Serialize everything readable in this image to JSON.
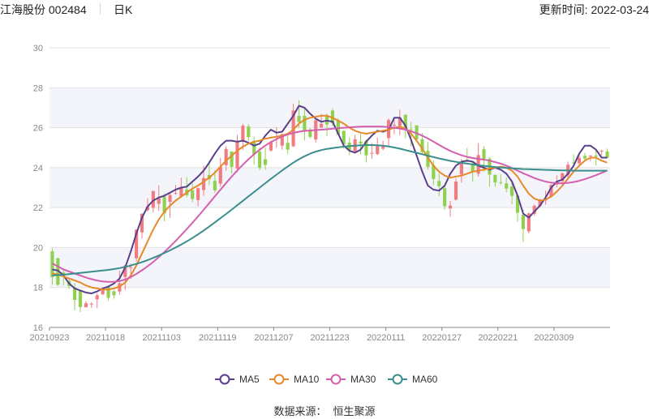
{
  "header": {
    "stock": "江海股份 002484",
    "period": "日K",
    "updated_label": "更新时间: ",
    "updated_date": "2022-03-24"
  },
  "footer": {
    "source_label": "数据来源：",
    "source_value": "恒生聚源"
  },
  "colors": {
    "up": "#f07c82",
    "down": "#8fd14f",
    "MA5": "#5a3f8c",
    "MA10": "#e8892a",
    "MA30": "#d45fae",
    "MA60": "#3a8f8c",
    "band": "#f4f5fa",
    "grid": "#e2e2e2"
  },
  "chart_data": {
    "type": "candlestick",
    "y_ticks": [
      "16",
      "18",
      "20",
      "22",
      "24",
      "26",
      "28",
      "30"
    ],
    "ylim": [
      16,
      30
    ],
    "x_labels": [
      "20210923",
      "20211018",
      "20211103",
      "20211119",
      "20211207",
      "20211223",
      "20220111",
      "20220127",
      "20220221",
      "20220309"
    ],
    "x_label_index": [
      0,
      10,
      20,
      30,
      40,
      50,
      60,
      70,
      80,
      90
    ],
    "candle_count": 100,
    "candles": [
      [
        19.81,
        18.52,
        19.96,
        18.15
      ],
      [
        19.46,
        18.14,
        19.5,
        18.08
      ],
      [
        18.75,
        18.57,
        18.95,
        18.1
      ],
      [
        18.33,
        18.07,
        18.45,
        17.93
      ],
      [
        17.99,
        17.38,
        18.21,
        16.86
      ],
      [
        17.85,
        17.02,
        17.89,
        16.77
      ],
      [
        17.01,
        17.21,
        17.32,
        17.0
      ],
      [
        17.16,
        17.19,
        17.26,
        16.99
      ],
      [
        17.41,
        17.61,
        17.71,
        16.97
      ],
      [
        17.66,
        17.9,
        17.96,
        17.62
      ],
      [
        18.03,
        17.48,
        18.09,
        17.35
      ],
      [
        17.81,
        17.61,
        17.89,
        17.44
      ],
      [
        17.8,
        18.21,
        18.84,
        17.64
      ],
      [
        18.53,
        19.1,
        19.14,
        17.88
      ],
      [
        19.0,
        19.02,
        19.2,
        18.43
      ],
      [
        19.46,
        20.89,
        20.91,
        19.31
      ],
      [
        20.76,
        21.69,
        21.72,
        20.45
      ],
      [
        21.87,
        22.05,
        22.47,
        21.8
      ],
      [
        21.99,
        22.83,
        22.84,
        21.76
      ],
      [
        22.19,
        22.46,
        23.12,
        21.84
      ],
      [
        22.55,
        21.71,
        22.7,
        21.32
      ],
      [
        22.29,
        22.63,
        22.76,
        21.48
      ],
      [
        22.71,
        22.73,
        23.13,
        22.64
      ],
      [
        22.58,
        23.0,
        23.5,
        22.49
      ],
      [
        22.91,
        22.62,
        23.53,
        22.53
      ],
      [
        22.86,
        22.43,
        23.21,
        22.26
      ],
      [
        22.38,
        22.97,
        23.0,
        22.06
      ],
      [
        22.88,
        23.48,
        24.09,
        22.59
      ],
      [
        23.63,
        23.43,
        24.35,
        23.12
      ],
      [
        23.34,
        22.86,
        23.86,
        22.75
      ],
      [
        23.2,
        24.04,
        24.49,
        23.05
      ],
      [
        24.12,
        24.94,
        25.07,
        23.84
      ],
      [
        24.81,
        24.04,
        24.81,
        23.71
      ],
      [
        23.96,
        25.34,
        25.64,
        23.77
      ],
      [
        25.33,
        26.1,
        26.2,
        24.88
      ],
      [
        26.06,
        25.53,
        26.17,
        25.34
      ],
      [
        25.34,
        24.68,
        25.55,
        24.16
      ],
      [
        24.8,
        23.99,
        25.01,
        23.87
      ],
      [
        24.42,
        24.14,
        25.0,
        23.89
      ],
      [
        24.86,
        25.27,
        25.35,
        24.79
      ],
      [
        25.51,
        25.58,
        26.02,
        25.0
      ],
      [
        25.1,
        25.68,
        25.7,
        24.9
      ],
      [
        25.24,
        24.9,
        25.6,
        24.7
      ],
      [
        25.07,
        26.86,
        27.21,
        25.03
      ],
      [
        26.59,
        26.28,
        27.38,
        25.99
      ],
      [
        26.59,
        25.87,
        27.01,
        25.36
      ],
      [
        25.91,
        25.54,
        25.98,
        25.45
      ],
      [
        25.41,
        26.37,
        26.46,
        25.25
      ],
      [
        26.01,
        26.2,
        26.68,
        25.99
      ],
      [
        26.57,
        26.16,
        26.71,
        25.57
      ],
      [
        26.86,
        26.23,
        26.98,
        26.08
      ],
      [
        26.33,
        25.65,
        26.46,
        25.61
      ],
      [
        25.84,
        25.17,
        25.87,
        24.95
      ],
      [
        25.25,
        24.88,
        25.5,
        24.63
      ],
      [
        24.82,
        25.42,
        25.65,
        24.79
      ],
      [
        25.3,
        25.21,
        25.7,
        24.67
      ],
      [
        25.35,
        24.62,
        25.4,
        24.26
      ],
      [
        24.7,
        24.74,
        25.23,
        24.44
      ],
      [
        24.68,
        25.08,
        25.5,
        24.62
      ],
      [
        24.95,
        25.06,
        25.34,
        24.87
      ],
      [
        25.48,
        26.38,
        26.47,
        25.08
      ],
      [
        26.12,
        26.15,
        26.41,
        25.67
      ],
      [
        26.09,
        26.51,
        26.9,
        25.63
      ],
      [
        26.65,
        26.01,
        26.66,
        25.47
      ],
      [
        25.93,
        25.89,
        26.3,
        25.06
      ],
      [
        26.12,
        25.42,
        26.12,
        25.3
      ],
      [
        25.42,
        24.78,
        25.73,
        24.67
      ],
      [
        24.84,
        24.04,
        25.29,
        23.9
      ],
      [
        24.13,
        23.44,
        24.36,
        23.12
      ],
      [
        23.33,
        23.07,
        23.72,
        22.57
      ],
      [
        22.97,
        22.07,
        23.07,
        21.89
      ],
      [
        21.96,
        22.1,
        22.33,
        21.54
      ],
      [
        22.4,
        23.3,
        23.46,
        22.35
      ],
      [
        23.66,
        24.26,
        24.43,
        23.25
      ],
      [
        24.39,
        24.28,
        24.98,
        24.3
      ],
      [
        24.21,
        23.8,
        24.29,
        23.29
      ],
      [
        23.7,
        24.63,
        25.23,
        23.55
      ],
      [
        24.92,
        24.44,
        25.07,
        23.8
      ],
      [
        24.45,
        23.65,
        24.52,
        23.04
      ],
      [
        23.64,
        23.26,
        23.65,
        23.05
      ],
      [
        23.27,
        23.24,
        23.68,
        23.14
      ],
      [
        23.21,
        22.95,
        23.51,
        22.77
      ],
      [
        23.06,
        22.58,
        23.23,
        22.17
      ],
      [
        22.6,
        21.74,
        22.67,
        21.29
      ],
      [
        21.64,
        20.92,
        21.91,
        20.27
      ],
      [
        20.81,
        21.71,
        21.75,
        20.7
      ],
      [
        21.69,
        22.09,
        22.15,
        21.6
      ],
      [
        22.07,
        22.36,
        22.45,
        22.02
      ],
      [
        22.36,
        22.45,
        22.85,
        22.15
      ],
      [
        22.55,
        23.13,
        23.18,
        22.51
      ],
      [
        23.15,
        23.31,
        23.62,
        23.02
      ],
      [
        23.32,
        23.72,
        23.74,
        23.16
      ],
      [
        23.64,
        24.15,
        24.3,
        23.42
      ],
      [
        24.25,
        24.21,
        24.67,
        24.21
      ],
      [
        24.22,
        24.49,
        24.7,
        24.09
      ],
      [
        24.59,
        24.45,
        24.74,
        24.34
      ],
      [
        24.57,
        24.61,
        24.62,
        24.33
      ],
      [
        24.61,
        24.56,
        24.85,
        24.1
      ],
      [
        24.84,
        24.85,
        24.9,
        24.61
      ],
      [
        24.81,
        24.5,
        24.95,
        24.46
      ]
    ],
    "series": [
      {
        "name": "MA5",
        "values": [
          18.9,
          18.85,
          18.6,
          18.2,
          17.95,
          17.85,
          17.75,
          17.7,
          17.8,
          17.95,
          18.05,
          18.2,
          18.45,
          19.0,
          19.8,
          20.7,
          21.5,
          22.05,
          22.35,
          22.5,
          22.6,
          22.75,
          22.9,
          23.0,
          23.05,
          23.3,
          23.55,
          23.85,
          24.25,
          24.7,
          25.1,
          25.35,
          25.35,
          25.3,
          25.35,
          25.25,
          25.1,
          25.2,
          25.6,
          25.9,
          25.75,
          25.8,
          26.2,
          26.6,
          27.1,
          27.0,
          26.7,
          26.45,
          26.3,
          26.35,
          26.3,
          25.7,
          25.1,
          24.85,
          24.75,
          24.9,
          25.3,
          25.6,
          25.85,
          25.8,
          25.9,
          26.5,
          26.5,
          26.1,
          25.4,
          24.6,
          23.8,
          23.1,
          22.9,
          22.85,
          23.1,
          23.7,
          24.1,
          24.3,
          24.35,
          24.3,
          24.1,
          24.0,
          23.9,
          24.0,
          23.9,
          23.7,
          23.3,
          22.6,
          21.7,
          21.5,
          21.8,
          22.1,
          22.5,
          23.0,
          23.3,
          23.4,
          23.7,
          24.1,
          24.7,
          25.1,
          25.1,
          24.9,
          24.5,
          24.5
        ]
      },
      {
        "name": "MA10",
        "values": [
          18.7,
          18.65,
          18.55,
          18.45,
          18.35,
          18.25,
          18.1,
          18.0,
          17.95,
          17.9,
          17.9,
          17.95,
          18.05,
          18.25,
          18.6,
          19.1,
          19.7,
          20.3,
          20.9,
          21.4,
          21.8,
          22.1,
          22.35,
          22.55,
          22.75,
          22.95,
          23.1,
          23.3,
          23.5,
          23.75,
          24.05,
          24.35,
          24.6,
          24.85,
          25.05,
          25.2,
          25.3,
          25.35,
          25.45,
          25.5,
          25.55,
          25.6,
          25.7,
          25.9,
          26.2,
          26.4,
          26.5,
          26.55,
          26.6,
          26.6,
          26.5,
          26.35,
          26.2,
          26.0,
          25.85,
          25.75,
          25.7,
          25.75,
          25.8,
          25.85,
          25.9,
          26.0,
          26.05,
          25.95,
          25.7,
          25.35,
          24.95,
          24.5,
          24.1,
          23.8,
          23.6,
          23.5,
          23.55,
          23.6,
          23.7,
          23.8,
          23.85,
          23.9,
          23.95,
          24.0,
          24.05,
          24.0,
          23.85,
          23.55,
          23.1,
          22.7,
          22.45,
          22.35,
          22.4,
          22.55,
          22.8,
          23.1,
          23.45,
          23.8,
          24.1,
          24.35,
          24.5,
          24.5,
          24.35,
          24.25
        ]
      },
      {
        "name": "MA30",
        "values": [
          19.2,
          19.05,
          18.9,
          18.8,
          18.7,
          18.6,
          18.5,
          18.42,
          18.35,
          18.3,
          18.28,
          18.28,
          18.32,
          18.4,
          18.52,
          18.68,
          18.86,
          19.06,
          19.28,
          19.52,
          19.78,
          20.05,
          20.33,
          20.62,
          20.93,
          21.24,
          21.56,
          21.89,
          22.22,
          22.56,
          22.9,
          23.23,
          23.55,
          23.86,
          24.15,
          24.42,
          24.67,
          24.9,
          25.1,
          25.28,
          25.43,
          25.56,
          25.66,
          25.74,
          25.8,
          25.84,
          25.86,
          25.88,
          25.9,
          25.92,
          25.95,
          25.98,
          26.0,
          26.02,
          26.04,
          26.05,
          26.06,
          26.06,
          26.06,
          26.05,
          26.03,
          26.0,
          25.96,
          25.9,
          25.82,
          25.72,
          25.6,
          25.46,
          25.3,
          25.14,
          24.98,
          24.84,
          24.72,
          24.62,
          24.54,
          24.48,
          24.44,
          24.4,
          24.35,
          24.28,
          24.2,
          24.1,
          23.98,
          23.85,
          23.72,
          23.6,
          23.48,
          23.38,
          23.3,
          23.25,
          23.22,
          23.22,
          23.24,
          23.28,
          23.34,
          23.42,
          23.52,
          23.62,
          23.74,
          23.86
        ]
      },
      {
        "name": "MA60",
        "values": [
          18.6,
          18.62,
          18.64,
          18.67,
          18.7,
          18.73,
          18.76,
          18.79,
          18.82,
          18.85,
          18.88,
          18.92,
          18.97,
          19.03,
          19.1,
          19.18,
          19.27,
          19.37,
          19.48,
          19.6,
          19.73,
          19.86,
          20.0,
          20.15,
          20.31,
          20.48,
          20.66,
          20.85,
          21.05,
          21.26,
          21.47,
          21.68,
          21.9,
          22.12,
          22.34,
          22.56,
          22.78,
          23.0,
          23.22,
          23.44,
          23.65,
          23.86,
          24.06,
          24.25,
          24.42,
          24.57,
          24.7,
          24.8,
          24.88,
          24.94,
          24.98,
          25.02,
          25.05,
          25.08,
          25.1,
          25.12,
          25.13,
          25.13,
          25.12,
          25.1,
          25.06,
          25.01,
          24.95,
          24.88,
          24.81,
          24.74,
          24.67,
          24.6,
          24.53,
          24.46,
          24.4,
          24.34,
          24.29,
          24.24,
          24.2,
          24.16,
          24.12,
          24.09,
          24.06,
          24.03,
          24.01,
          23.99,
          23.97,
          23.95,
          23.93,
          23.92,
          23.91,
          23.9,
          23.89,
          23.88,
          23.87,
          23.86,
          23.86,
          23.85,
          23.85,
          23.85,
          23.85,
          23.85,
          23.85,
          23.85
        ]
      }
    ],
    "legend": [
      "MA5",
      "MA10",
      "MA30",
      "MA60"
    ]
  }
}
